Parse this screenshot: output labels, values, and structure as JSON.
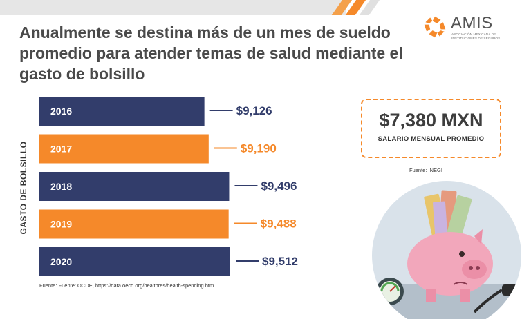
{
  "header": {
    "title": "Anualmente se destina más de un mes de sueldo promedio para atender temas de salud mediante el gasto de bolsillo"
  },
  "logo": {
    "name": "AMIS",
    "subtitle": "ASOCIACIÓN MEXICANA DE INSTITUCIONES DE SEGUROS",
    "icon": "amis-logo-icon"
  },
  "colors": {
    "navy": "#323d6b",
    "orange": "#f5892a",
    "title_grey": "#4a4a4a"
  },
  "chart_data": {
    "type": "bar",
    "orientation": "horizontal",
    "categories": [
      "2016",
      "2017",
      "2018",
      "2019",
      "2020"
    ],
    "values": [
      9126,
      9190,
      9496,
      9488,
      9512
    ],
    "value_labels": [
      "$9,126",
      "$9,190",
      "$9,496",
      "$9,488",
      "$9,512"
    ],
    "bar_colors": [
      "#323d6b",
      "#f5892a",
      "#323d6b",
      "#f5892a",
      "#323d6b"
    ],
    "ylabel": "GASTO DE BOLSILLO",
    "grid": false,
    "legend": "none"
  },
  "source_left": "Fuente: Fuente: OCDE, https://data.oecd.org/healthres/health-spending.htm",
  "salary": {
    "value": "$7,380 MXN",
    "label": "SALARIO MENSUAL PROMEDIO",
    "source": "Fuente: INEGI"
  },
  "illustration": {
    "icon": "piggy-bank-with-banknotes-illustration"
  }
}
